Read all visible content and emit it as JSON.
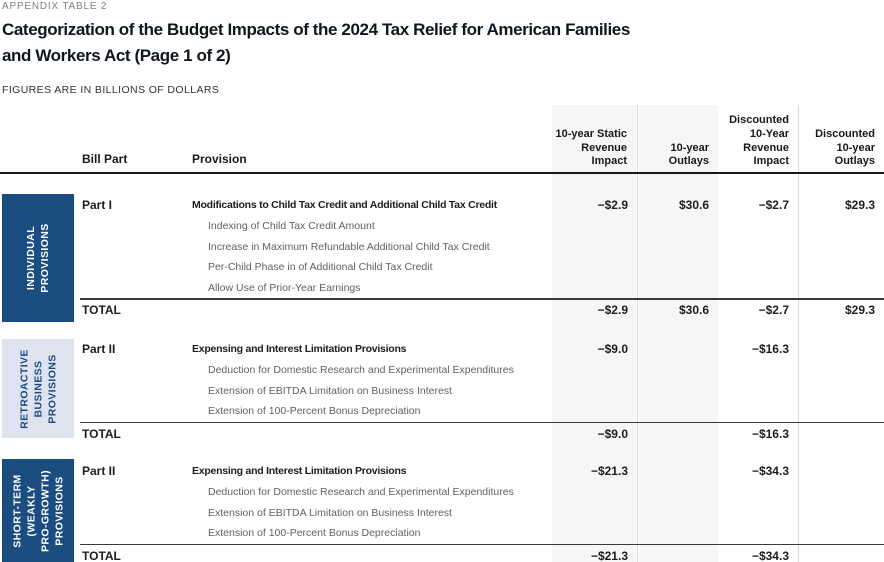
{
  "header": {
    "eyebrow": "APPENDIX TABLE 2",
    "title": "Categorization of the Budget Impacts of the 2024 Tax Relief for American Families and Workers Act (Page 1 of 2)",
    "title_lines": [
      "Categorization of the Budget Impacts of the 2024 Tax Relief for American Families",
      "and Workers Act (Page 1 of 2)"
    ],
    "units_note": "FIGURES ARE IN BILLIONS OF DOLLARS"
  },
  "table": {
    "column_headers": {
      "bill_part": "Bill Part",
      "provision": "Provision",
      "static_revenue": "10-year Static Revenue Impact",
      "outlays": "10-year Outlays",
      "discounted_revenue": "Discounted 10-Year Revenue Impact",
      "discounted_outlays": "Discounted 10-year Outlays"
    },
    "sections": [
      {
        "category": "INDIVIDUAL PROVISIONS",
        "category_lines": [
          "INDIVIDUAL",
          "PROVISIONS"
        ],
        "bill_part": "Part I",
        "heading": "Modifications to Child Tax Credit and Additional Child Tax Credit",
        "values": {
          "static": "−$2.9",
          "outlays": "$30.6",
          "discounted_revenue": "−$2.7",
          "discounted_outlays": "$29.3"
        },
        "items": [
          "Indexing of Child Tax Credit Amount",
          "Increase in Maximum Refundable Additional Child Tax Credit",
          "Per-Child Phase in of Additional Child Tax Credit",
          "Allow Use of Prior-Year Earnings"
        ],
        "total_label": "TOTAL",
        "totals": {
          "static": "−$2.9",
          "outlays": "$30.6",
          "discounted_revenue": "−$2.7",
          "discounted_outlays": "$29.3"
        }
      },
      {
        "category": "RETROACTIVE BUSINESS PROVISIONS",
        "category_lines": [
          "RETROACTIVE",
          "BUSINESS",
          "PROVISIONS"
        ],
        "bill_part": "Part II",
        "heading": "Expensing and Interest Limitation Provisions",
        "values": {
          "static": "−$9.0",
          "outlays": "",
          "discounted_revenue": "−$16.3",
          "discounted_outlays": ""
        },
        "items": [
          "Deduction for Domestic Research and Experimental Expenditures",
          "Extension of EBITDA Limitation on Business Interest",
          "Extension of 100-Percent Bonus Depreciation"
        ],
        "total_label": "TOTAL",
        "totals": {
          "static": "−$9.0",
          "outlays": "",
          "discounted_revenue": "−$16.3",
          "discounted_outlays": ""
        }
      },
      {
        "category": "SHORT-TERM (WEAKLY PRO-GROWTH) PROVISIONS",
        "category_lines": [
          "SHORT-TERM",
          "(WEAKLY",
          "PRO-GROWTH)",
          "PROVISIONS"
        ],
        "bill_part": "Part II",
        "heading": "Expensing and Interest Limitation Provisions",
        "values": {
          "static": "−$21.3",
          "outlays": "",
          "discounted_revenue": "−$34.3",
          "discounted_outlays": ""
        },
        "items": [
          "Deduction for Domestic Research and Experimental Expenditures",
          "Extension of EBITDA Limitation on Business Interest",
          "Extension of 100-Percent Bonus Depreciation"
        ],
        "total_label": "TOTAL",
        "totals": {
          "static": "−$21.3",
          "outlays": "",
          "discounted_revenue": "−$34.3",
          "discounted_outlays": ""
        }
      }
    ]
  },
  "colors": {
    "category_navy": "#1B4D80",
    "category_light_blue": "#DFE3F0",
    "column_shading": "#F6F6F6",
    "header_rule": "#17191B"
  }
}
